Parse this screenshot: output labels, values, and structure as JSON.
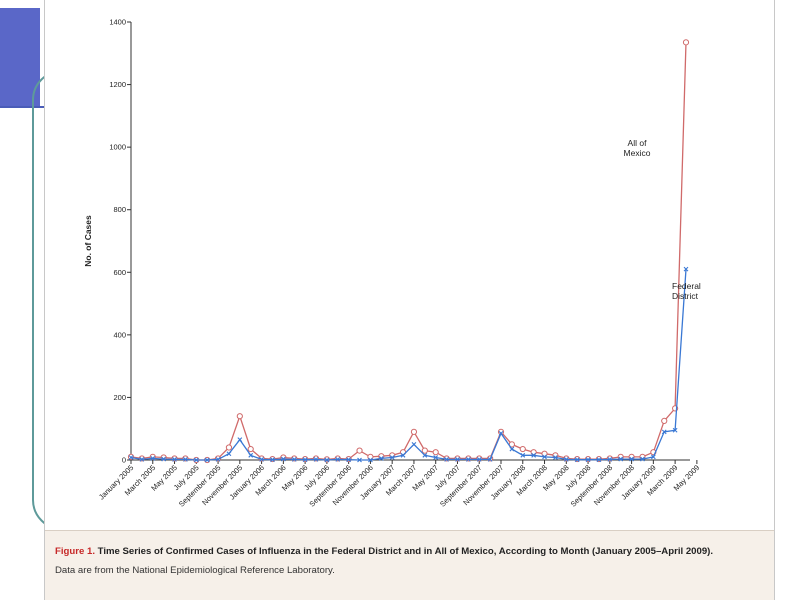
{
  "chart_data": {
    "type": "line",
    "ylabel": "No. of Cases",
    "ylim": [
      0,
      1400
    ],
    "yticks": [
      0,
      200,
      400,
      600,
      800,
      1000,
      1200,
      1400
    ],
    "xtick_labels": [
      "January 2005",
      "March 2005",
      "May 2005",
      "July 2005",
      "September 2005",
      "November 2005",
      "January 2006",
      "March 2006",
      "May 2006",
      "July 2006",
      "September 2006",
      "November 2006",
      "January 2007",
      "March 2007",
      "May 2007",
      "July 2007",
      "September 2007",
      "November 2007",
      "January 2008",
      "March 2008",
      "May 2008",
      "July 2008",
      "September 2008",
      "November 2008",
      "January 2009",
      "March 2009",
      "May 2009"
    ],
    "x": [
      "2005-01",
      "2005-02",
      "2005-03",
      "2005-04",
      "2005-05",
      "2005-06",
      "2005-07",
      "2005-08",
      "2005-09",
      "2005-10",
      "2005-11",
      "2005-12",
      "2006-01",
      "2006-02",
      "2006-03",
      "2006-04",
      "2006-05",
      "2006-06",
      "2006-07",
      "2006-08",
      "2006-09",
      "2006-10",
      "2006-11",
      "2006-12",
      "2007-01",
      "2007-02",
      "2007-03",
      "2007-04",
      "2007-05",
      "2007-06",
      "2007-07",
      "2007-08",
      "2007-09",
      "2007-10",
      "2007-11",
      "2007-12",
      "2008-01",
      "2008-02",
      "2008-03",
      "2008-04",
      "2008-05",
      "2008-06",
      "2008-07",
      "2008-08",
      "2008-09",
      "2008-10",
      "2008-11",
      "2008-12",
      "2009-01",
      "2009-02",
      "2009-03",
      "2009-04"
    ],
    "series": [
      {
        "name": "All of Mexico",
        "color": "#d06a6a",
        "marker": "circle",
        "values": [
          10,
          5,
          10,
          8,
          5,
          5,
          0,
          0,
          5,
          40,
          140,
          35,
          5,
          3,
          8,
          5,
          3,
          5,
          2,
          5,
          3,
          30,
          10,
          12,
          15,
          25,
          90,
          30,
          25,
          5,
          5,
          5,
          5,
          5,
          90,
          50,
          35,
          25,
          20,
          15,
          5,
          3,
          3,
          3,
          5,
          10,
          10,
          10,
          25,
          125,
          165,
          1335
        ]
      },
      {
        "name": "Federal District",
        "color": "#3a78d4",
        "marker": "x",
        "values": [
          8,
          2,
          5,
          3,
          2,
          2,
          0,
          0,
          2,
          20,
          65,
          15,
          2,
          1,
          3,
          2,
          1,
          2,
          0,
          2,
          1,
          0,
          0,
          5,
          8,
          15,
          50,
          15,
          8,
          2,
          2,
          2,
          2,
          2,
          85,
          35,
          15,
          15,
          10,
          8,
          2,
          1,
          1,
          1,
          2,
          3,
          3,
          3,
          10,
          90,
          95,
          610
        ]
      }
    ],
    "annotations": [
      {
        "lines": [
          "All of",
          "Mexico"
        ],
        "series": "All of Mexico"
      },
      {
        "lines": [
          "Federal",
          "District"
        ],
        "series": "Federal District"
      }
    ]
  },
  "caption": {
    "figure_label": "Figure 1.",
    "title": " Time Series of Confirmed Cases of Influenza in the Federal District and in All of Mexico, According to Month (January 2005–April 2009).",
    "note": "Data are from the National Epidemiological Reference Laboratory."
  }
}
